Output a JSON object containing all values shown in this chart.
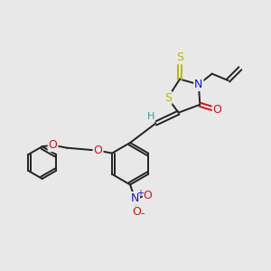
{
  "bg_color": "#e8e8e8",
  "bond_color": "#222222",
  "bond_width": 1.4,
  "S_color": "#b8b800",
  "N_color": "#1515cc",
  "O_color": "#cc1515",
  "H_color": "#3a9999",
  "figsize": [
    3.0,
    3.0
  ],
  "dpi": 100,
  "xlim": [
    0,
    10
  ],
  "ylim": [
    0,
    10
  ]
}
